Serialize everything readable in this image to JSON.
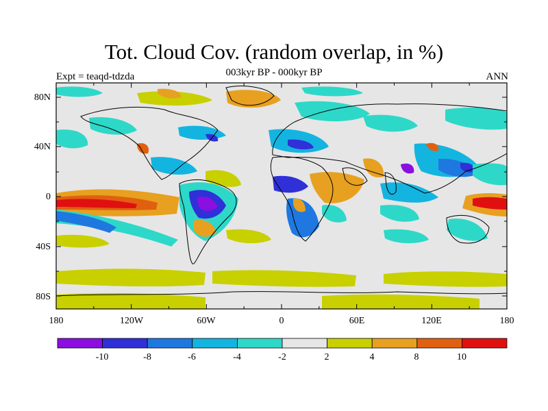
{
  "title": "Tot. Cloud Cov. (random overlap, in %)",
  "subtitle_left": "Expt = teaqd-tdzda",
  "subtitle_center": "003kyr BP - 000kyr BP",
  "subtitle_right": "ANN",
  "map": {
    "lon_ticks": [
      "180",
      "120W",
      "60W",
      "0",
      "60E",
      "120E",
      "180"
    ],
    "lat_ticks": [
      "80N",
      "40N",
      "0",
      "40S",
      "80S"
    ]
  },
  "colorbar": {
    "colors": [
      "#8a0fe0",
      "#3030d8",
      "#1f78e0",
      "#14b4e0",
      "#2ed8c8",
      "#e6e6e6",
      "#c8d000",
      "#e8a020",
      "#e06010",
      "#e01010"
    ],
    "labels": [
      "-10",
      "-8",
      "-6",
      "-4",
      "-2",
      "2",
      "4",
      "8",
      "10"
    ]
  }
}
